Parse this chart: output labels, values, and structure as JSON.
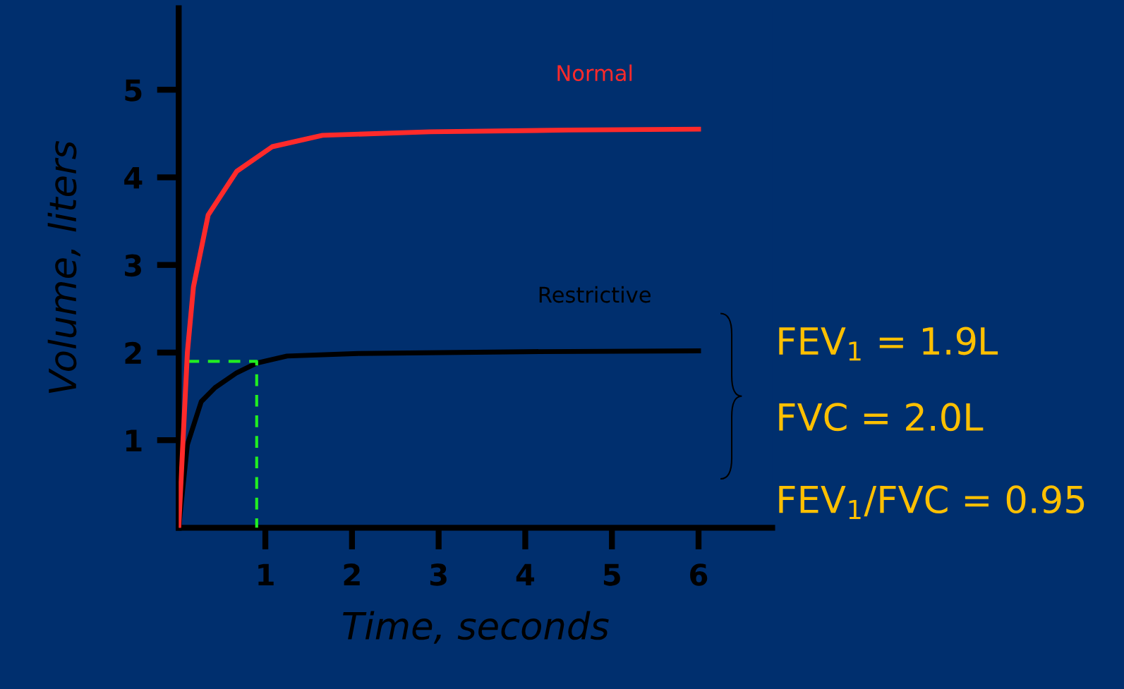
{
  "chart_data": {
    "type": "line",
    "xlabel": "Time, seconds",
    "ylabel": "Volume, liters",
    "xlim": [
      0,
      6.85
    ],
    "ylim": [
      0,
      5.93
    ],
    "xticks": [
      1,
      2,
      3,
      4,
      5,
      6
    ],
    "yticks": [
      1,
      2,
      3,
      4,
      5
    ],
    "grid": false,
    "legend": false,
    "series": [
      {
        "name": "Normal",
        "color": "#ff2a2a",
        "x": [
          0,
          0.1,
          0.17,
          0.34,
          0.67,
          1.08,
          1.66,
          2.9,
          4.5,
          6
        ],
        "values": [
          0,
          2.0,
          2.75,
          3.57,
          4.07,
          4.35,
          4.48,
          4.52,
          4.54,
          4.55
        ]
      },
      {
        "name": "Restrictive",
        "color": "#000000",
        "x": [
          0,
          0.1,
          0.26,
          0.42,
          0.67,
          0.9,
          1.25,
          2.07,
          4,
          6
        ],
        "values": [
          0,
          0.95,
          1.44,
          1.6,
          1.77,
          1.88,
          1.96,
          1.99,
          2.01,
          2.02
        ]
      },
      {
        "color": "#22ee22",
        "line_style": "dashed",
        "x": [
          0.1,
          0.9,
          0.9
        ],
        "values": [
          1.9,
          1.9,
          0
        ]
      }
    ],
    "annotations": [
      "FEV$_{1}$ = 1.9L",
      "FVC = 2.0L",
      "FEV$_{1}$/FVC = 0.95"
    ]
  }
}
